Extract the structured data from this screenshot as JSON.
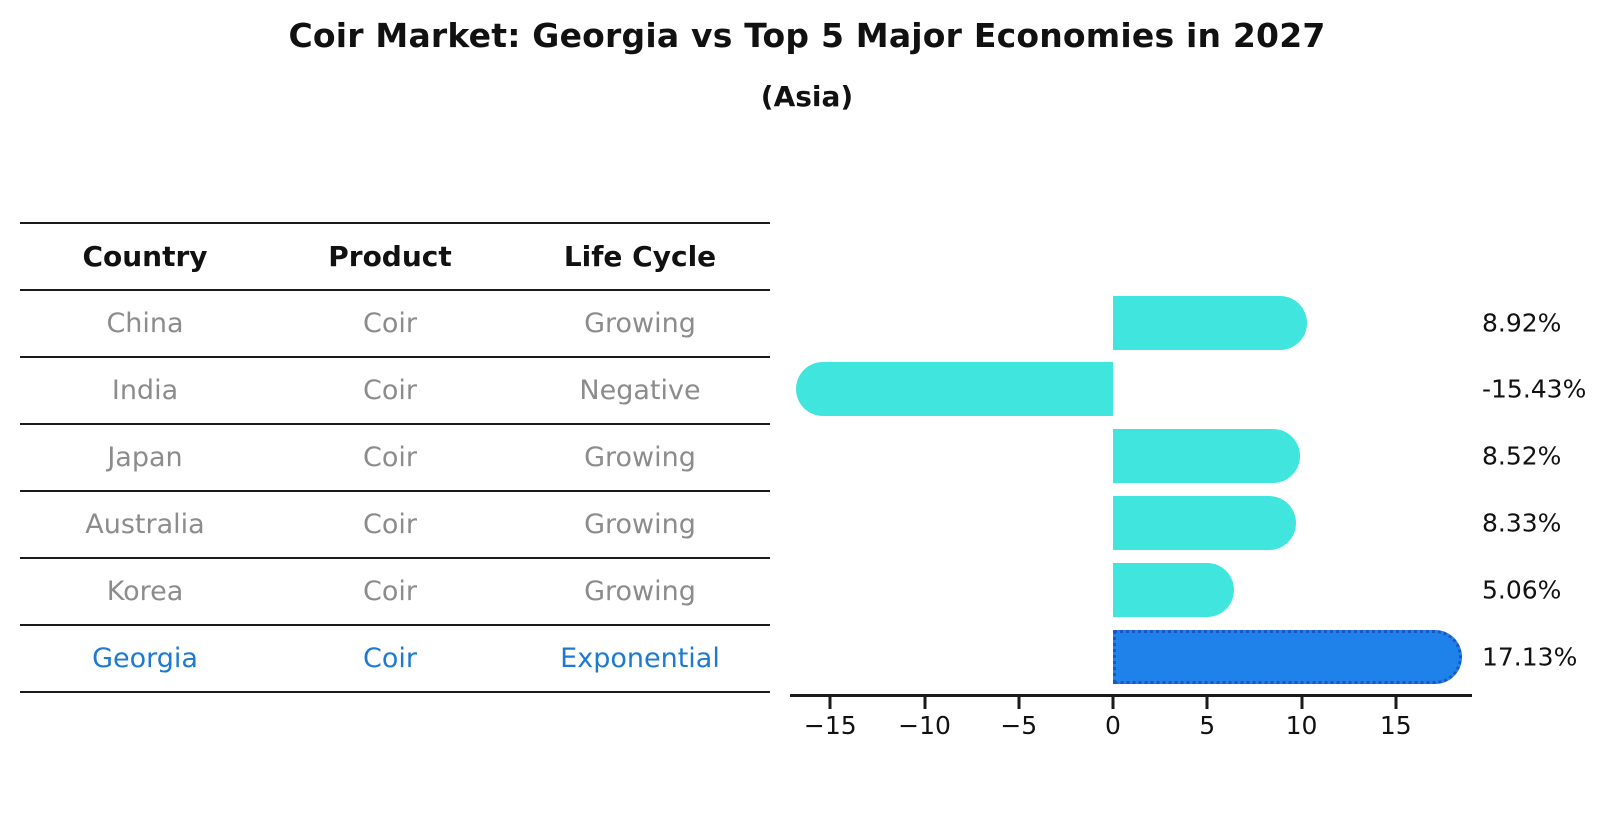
{
  "title": "Coir Market: Georgia vs Top 5 Major Economies in 2027",
  "subtitle": "(Asia)",
  "table": {
    "headers": [
      "Country",
      "Product",
      "Life Cycle"
    ],
    "rows": [
      {
        "country": "China",
        "product": "Coir",
        "life_cycle": "Growing"
      },
      {
        "country": "India",
        "product": "Coir",
        "life_cycle": "Negative"
      },
      {
        "country": "Japan",
        "product": "Coir",
        "life_cycle": "Growing"
      },
      {
        "country": "Australia",
        "product": "Coir",
        "life_cycle": "Growing"
      },
      {
        "country": "Korea",
        "product": "Coir",
        "life_cycle": "Growing"
      },
      {
        "country": "Georgia",
        "product": "Coir",
        "life_cycle": "Exponential"
      }
    ],
    "highlight_row": "Georgia"
  },
  "chart_data": {
    "type": "bar",
    "orientation": "horizontal",
    "title": "Coir Market: Georgia vs Top 5 Major Economies in 2027 (Asia)",
    "xlabel": "",
    "ylabel": "",
    "categories": [
      "China",
      "India",
      "Japan",
      "Australia",
      "Korea",
      "Georgia"
    ],
    "values": [
      8.92,
      -15.43,
      8.52,
      8.33,
      5.06,
      17.13
    ],
    "value_labels": [
      "8.92%",
      "-15.43%",
      "8.52%",
      "8.33%",
      "5.06%",
      "17.13%"
    ],
    "x_ticks": [
      -15,
      -10,
      -5,
      0,
      5,
      10,
      15
    ],
    "x_tick_labels": [
      "−15",
      "−10",
      "−5",
      "0",
      "5",
      "10",
      "15"
    ],
    "xlim": [
      -17.2,
      19.0
    ],
    "grid": false,
    "legend": "none",
    "highlight_index": 5,
    "bar_color": "#40E6DE",
    "highlight_fill": "#1E82EA",
    "highlight_border": "#1A56C4"
  }
}
